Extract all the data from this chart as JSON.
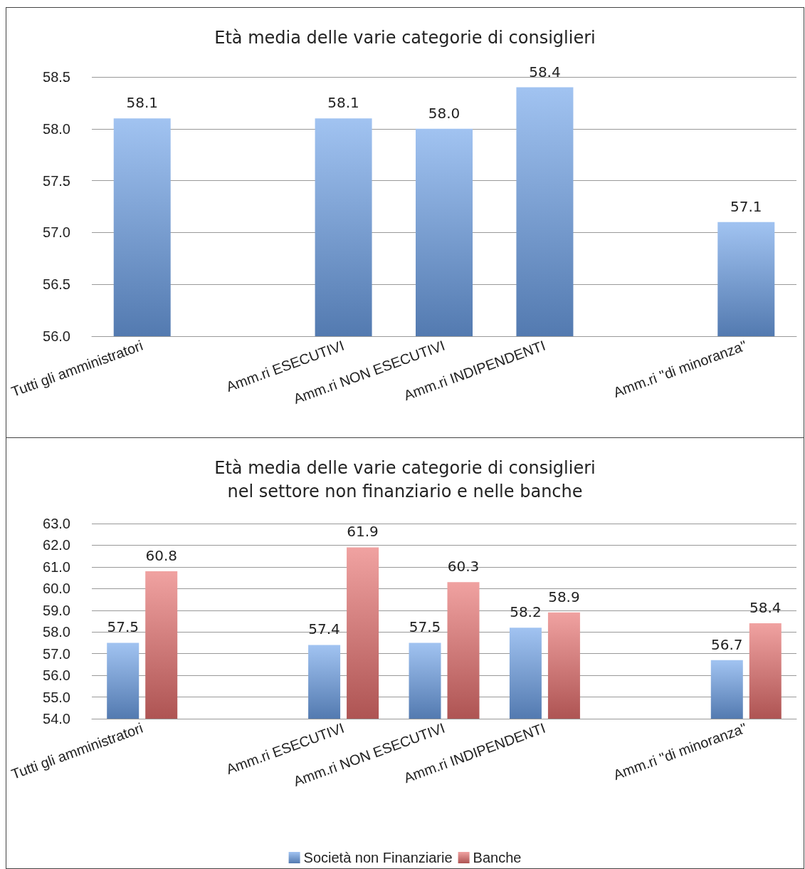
{
  "chart_data": [
    {
      "type": "bar",
      "title": "Età media delle varie categorie di consiglieri",
      "categories": [
        "Tutti gli amministratori",
        null,
        "Amm.ri ESECUTIVI",
        "Amm.ri NON ESECUTIVI",
        "Amm.ri INDIPENDENTI",
        null,
        "Amm.ri \"di minoranza\""
      ],
      "series": [
        {
          "color": "#6fa2ea",
          "values": [
            58.1,
            null,
            58.1,
            58.0,
            58.4,
            null,
            57.1
          ],
          "value_labels": [
            "58.1",
            null,
            "58.1",
            "58.0",
            "58.4",
            null,
            "57.1"
          ]
        }
      ],
      "ylim": [
        56,
        58.5
      ],
      "yticks": [
        {
          "value": 56,
          "label": "56.0"
        },
        {
          "value": 56.5,
          "label": "56.5"
        },
        {
          "value": 57,
          "label": "57.0"
        },
        {
          "value": 57.5,
          "label": "57.5"
        },
        {
          "value": 58,
          "label": "58.0"
        },
        {
          "value": 58.5,
          "label": "58.5"
        }
      ],
      "grid": "y",
      "data_labels": true,
      "legend": false
    },
    {
      "type": "bar",
      "title": "Età media delle varie categorie di consiglieri\nnel settore non finanziario e nelle banche",
      "categories": [
        "Tutti gli amministratori",
        null,
        "Amm.ri ESECUTIVI",
        "Amm.ri NON ESECUTIVI",
        "Amm.ri INDIPENDENTI",
        null,
        "Amm.ri \"di minoranza\""
      ],
      "series": [
        {
          "name": "Società non Finanziarie",
          "color": "#6fa2ea",
          "values": [
            57.5,
            null,
            57.4,
            57.5,
            58.2,
            null,
            56.7
          ]
        },
        {
          "name": "Banche",
          "color": "#e8706f",
          "values": [
            60.8,
            null,
            61.9,
            60.3,
            58.9,
            null,
            58.4
          ]
        }
      ],
      "ylim": [
        54,
        63
      ],
      "yticks": [
        {
          "value": 54,
          "label": "54.0"
        },
        {
          "value": 55,
          "label": "55.0"
        },
        {
          "value": 56,
          "label": "56.0"
        },
        {
          "value": 57,
          "label": "57.0"
        },
        {
          "value": 58,
          "label": "58.0"
        },
        {
          "value": 59,
          "label": "59.0"
        },
        {
          "value": 60,
          "label": "60.0"
        },
        {
          "value": 61,
          "label": "61.0"
        },
        {
          "value": 62,
          "label": "62.0"
        },
        {
          "value": 63,
          "label": "63.0"
        }
      ],
      "grid": "y",
      "data_labels": true,
      "legend": "bottom"
    }
  ]
}
